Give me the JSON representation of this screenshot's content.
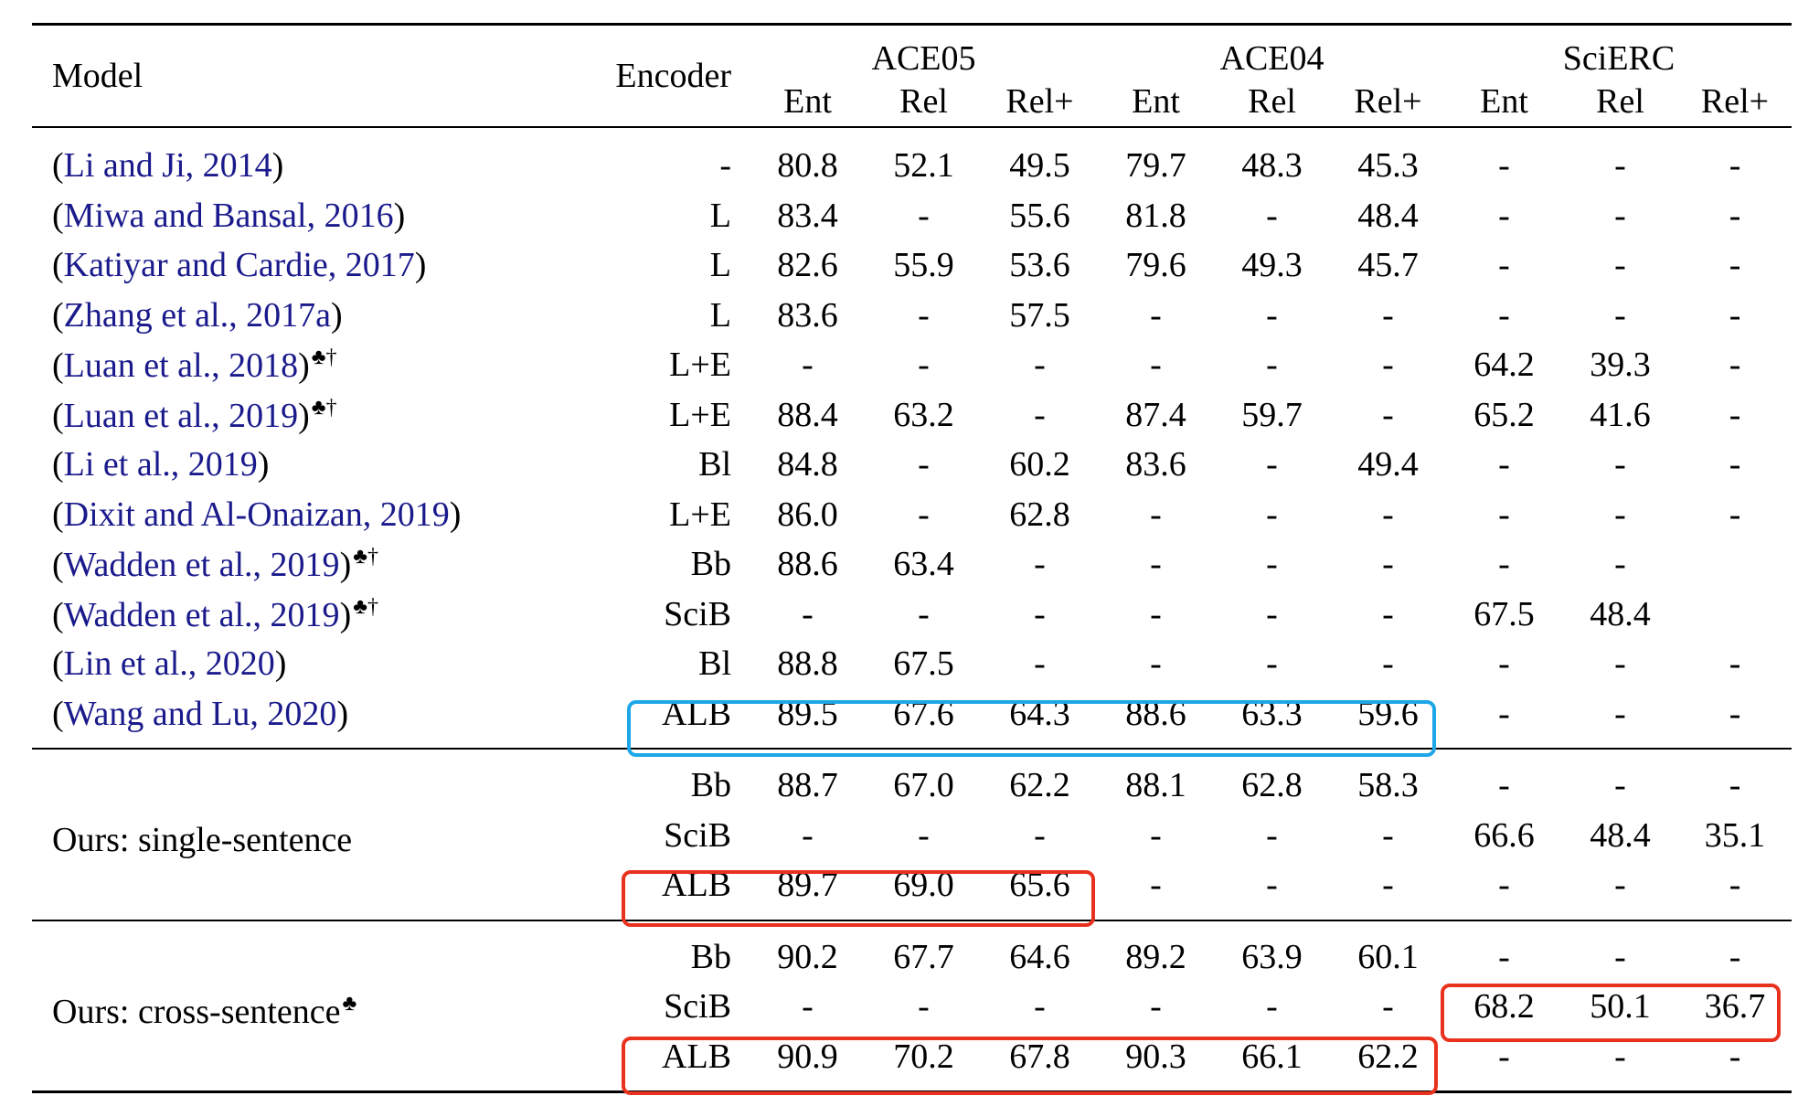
{
  "header": {
    "model": "Model",
    "encoder": "Encoder",
    "datasets": [
      "ACE05",
      "ACE04",
      "SciERC"
    ],
    "metrics": [
      "Ent",
      "Rel",
      "Rel+",
      "Ent",
      "Rel",
      "Rel+",
      "Ent",
      "Rel",
      "Rel+"
    ]
  },
  "prior_rows": [
    {
      "cite": "Li and Ji, 2014",
      "sup": "",
      "encoder": "-",
      "values": [
        "80.8",
        "52.1",
        "49.5",
        "79.7",
        "48.3",
        "45.3",
        "-",
        "-",
        "-"
      ]
    },
    {
      "cite": "Miwa and Bansal, 2016",
      "sup": "",
      "encoder": "L",
      "values": [
        "83.4",
        "-",
        "55.6",
        "81.8",
        "-",
        "48.4",
        "-",
        "-",
        "-"
      ]
    },
    {
      "cite": "Katiyar and Cardie, 2017",
      "sup": "",
      "encoder": "L",
      "values": [
        "82.6",
        "55.9",
        "53.6",
        "79.6",
        "49.3",
        "45.7",
        "-",
        "-",
        "-"
      ]
    },
    {
      "cite": "Zhang et al., 2017a",
      "sup": "",
      "encoder": "L",
      "values": [
        "83.6",
        "-",
        "57.5",
        "-",
        "-",
        "-",
        "-",
        "-",
        "-"
      ]
    },
    {
      "cite": "Luan et al., 2018",
      "sup": "♣†",
      "encoder": "L+E",
      "values": [
        "-",
        "-",
        "-",
        "-",
        "-",
        "-",
        "64.2",
        "39.3",
        "-"
      ]
    },
    {
      "cite": "Luan et al., 2019",
      "sup": "♣†",
      "encoder": "L+E",
      "values": [
        "88.4",
        "63.2",
        "-",
        "87.4",
        "59.7",
        "-",
        "65.2",
        "41.6",
        "-"
      ]
    },
    {
      "cite": "Li et al., 2019",
      "sup": "",
      "encoder": "Bl",
      "values": [
        "84.8",
        "-",
        "60.2",
        "83.6",
        "-",
        "49.4",
        "-",
        "-",
        "-"
      ]
    },
    {
      "cite": "Dixit and Al-Onaizan, 2019",
      "sup": "",
      "encoder": "L+E",
      "values": [
        "86.0",
        "-",
        "62.8",
        "-",
        "-",
        "-",
        "-",
        "-",
        "-"
      ]
    },
    {
      "cite": "Wadden et al., 2019",
      "sup": "♣†",
      "encoder": "Bb",
      "values": [
        "88.6",
        "63.4",
        "-",
        "-",
        "-",
        "-",
        "-",
        "-",
        ""
      ]
    },
    {
      "cite": "Wadden et al., 2019",
      "sup": "♣†",
      "encoder": "SciB",
      "values": [
        "-",
        "-",
        "-",
        "-",
        "-",
        "-",
        "67.5",
        "48.4",
        ""
      ]
    },
    {
      "cite": "Lin et al., 2020",
      "sup": "",
      "encoder": "Bl",
      "values": [
        "88.8",
        "67.5",
        "-",
        "-",
        "-",
        "-",
        "-",
        "-",
        "-"
      ]
    },
    {
      "cite": "Wang and Lu, 2020",
      "sup": "",
      "encoder": "ALB",
      "values": [
        "89.5",
        "67.6",
        "64.3",
        "88.6",
        "63.3",
        "59.6",
        "-",
        "-",
        "-"
      ]
    }
  ],
  "ours_single": {
    "label": "Ours: single-sentence",
    "sup": "",
    "rows": [
      {
        "encoder": "Bb",
        "values": [
          "88.7",
          "67.0",
          "62.2",
          "88.1",
          "62.8",
          "58.3",
          "-",
          "-",
          "-"
        ],
        "bold": []
      },
      {
        "encoder": "SciB",
        "values": [
          "-",
          "-",
          "-",
          "-",
          "-",
          "-",
          "66.6",
          "48.4",
          "35.1"
        ],
        "bold": []
      },
      {
        "encoder": "ALB",
        "values": [
          "89.7",
          "69.0",
          "65.6",
          "-",
          "-",
          "-",
          "-",
          "-",
          "-"
        ],
        "bold": []
      }
    ]
  },
  "ours_cross": {
    "label": "Ours: cross-sentence",
    "sup": "♣",
    "rows": [
      {
        "encoder": "Bb",
        "values": [
          "90.2",
          "67.7",
          "64.6",
          "89.2",
          "63.9",
          "60.1",
          "-",
          "-",
          "-"
        ],
        "bold": []
      },
      {
        "encoder": "SciB",
        "values": [
          "-",
          "-",
          "-",
          "-",
          "-",
          "-",
          "68.2",
          "50.1",
          "36.7"
        ],
        "bold": [
          6,
          7,
          8
        ]
      },
      {
        "encoder": "ALB",
        "values": [
          "90.9",
          "70.2",
          "67.8",
          "90.3",
          "66.1",
          "62.2",
          "-",
          "-",
          "-"
        ],
        "bold": [
          0,
          1,
          2,
          3,
          4,
          5
        ]
      }
    ]
  },
  "highlight_colors": {
    "blue": "#1ea7e8",
    "red": "#e8321e",
    "citation": "#1a1a8c"
  }
}
